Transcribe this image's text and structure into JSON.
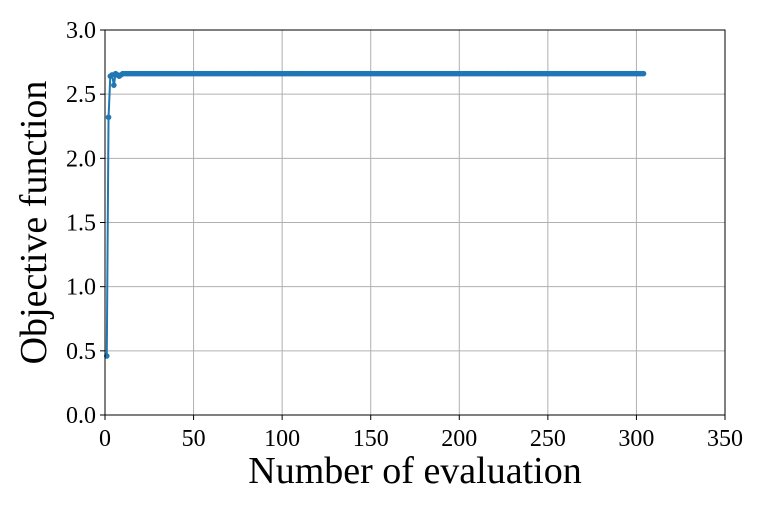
{
  "chart_data": {
    "type": "line",
    "title": "",
    "xlabel": "Number of evaluation",
    "ylabel": "Objective function",
    "xlim": [
      0,
      350
    ],
    "ylim": [
      0.0,
      3.0
    ],
    "x_ticks": [
      0,
      50,
      100,
      150,
      200,
      250,
      300,
      350
    ],
    "x_tick_labels": [
      "0",
      "50",
      "100",
      "150",
      "200",
      "250",
      "300",
      "350"
    ],
    "y_ticks": [
      0.0,
      0.5,
      1.0,
      1.5,
      2.0,
      2.5,
      3.0
    ],
    "y_tick_labels": [
      "0.0",
      "0.5",
      "1.0",
      "1.5",
      "2.0",
      "2.5",
      "3.0"
    ],
    "grid": true,
    "legend": "none",
    "series": [
      {
        "color": "#1f77b4",
        "marker": "circle",
        "x_start": 1,
        "x_end": 304,
        "initial_points": [
          {
            "x": 1,
            "y": 0.46
          },
          {
            "x": 2,
            "y": 2.32
          },
          {
            "x": 3,
            "y": 2.64
          },
          {
            "x": 4,
            "y": 2.65
          },
          {
            "x": 5,
            "y": 2.57
          },
          {
            "x": 6,
            "y": 2.66
          },
          {
            "x": 7,
            "y": 2.65
          },
          {
            "x": 8,
            "y": 2.64
          },
          {
            "x": 9,
            "y": 2.65
          },
          {
            "x": 10,
            "y": 2.66
          }
        ],
        "plateau_value": 2.66
      }
    ]
  }
}
